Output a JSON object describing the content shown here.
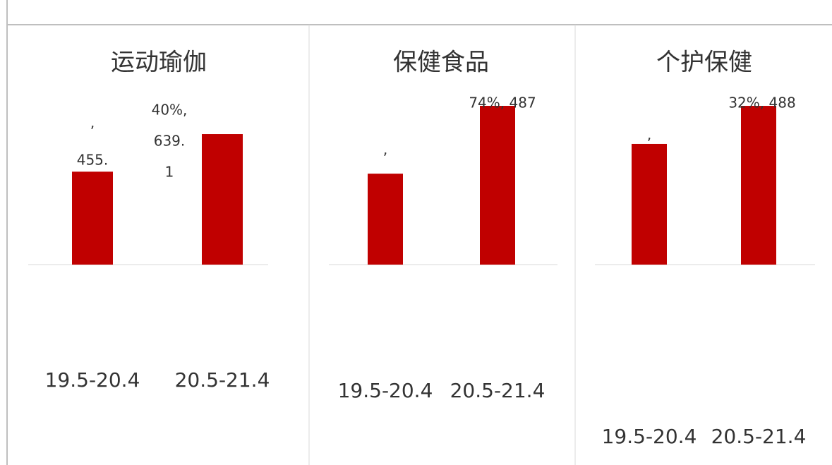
{
  "chart_data": [
    {
      "type": "bar",
      "title": "运动瑜伽",
      "categories": [
        "19.5-20.4",
        "20.5-21.4"
      ],
      "values": [
        455,
        639.1
      ],
      "value_labels": [
        [
          ",",
          "455."
        ],
        [
          "40%,",
          "639.",
          "1"
        ]
      ],
      "color": "#c00000",
      "ylim": [
        0,
        700
      ]
    },
    {
      "type": "bar",
      "title": "保健食品",
      "categories": [
        "19.5-20.4",
        "20.5-21.4"
      ],
      "values": [
        279,
        487
      ],
      "value_labels": [
        [
          ","
        ],
        [
          "74%, 487"
        ]
      ],
      "color": "#c00000",
      "ylim": [
        0,
        500
      ]
    },
    {
      "type": "bar",
      "title": "个护保健",
      "categories": [
        "19.5-20.4",
        "20.5-21.4"
      ],
      "values": [
        371,
        488
      ],
      "value_labels": [
        [
          ","
        ],
        [
          "32%, 488"
        ]
      ],
      "color": "#c00000",
      "ylim": [
        0,
        500
      ]
    }
  ]
}
